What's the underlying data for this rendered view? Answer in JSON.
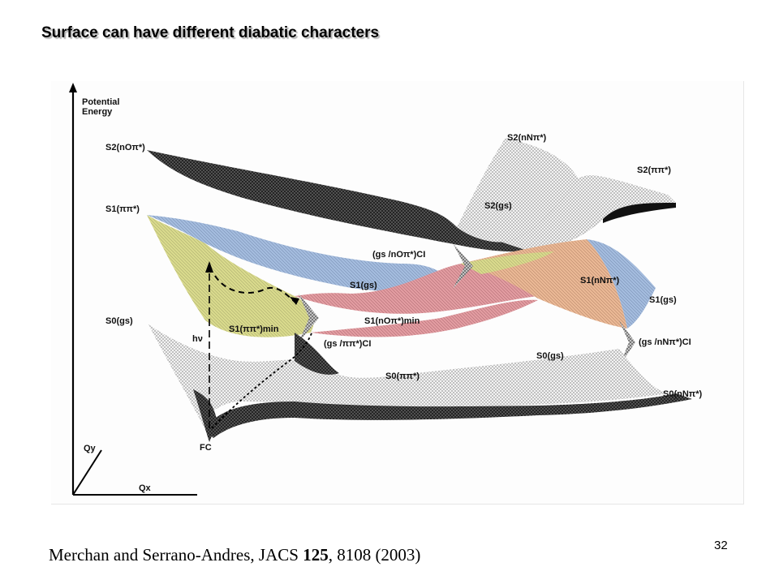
{
  "slide": {
    "title": "Surface can have different diabatic characters",
    "page_number": "32"
  },
  "citation": {
    "authors": "Merchan and Serrano-Andres, JACS ",
    "volume": "125",
    "rest": ", 8108 (2003)"
  },
  "figure": {
    "axis_y_title_line1": "Potential",
    "axis_y_title_line2": "Energy",
    "axis_qy": "Qy",
    "axis_qx": "Qx",
    "labels": {
      "s2_no_pi": "S2(nOπ*)",
      "s2_nn_pi": "S2(nNπ*)",
      "s2_pipi": "S2(ππ*)",
      "s2_gs": "S2(gs)",
      "s1_pipi": "S1(ππ*)",
      "ci_gs_no": "(gs /nOπ*)CI",
      "s1_gs_mid": "S1(gs)",
      "s1_nn_pi": "S1(nNπ*)",
      "s1_gs_right": "S1(gs)",
      "s0_gs_left": "S0(gs)",
      "hv": "hν",
      "s1_pipi_min": "S1(ππ*)min",
      "s1_no_pi_min": "S1(nOπ*)min",
      "ci_gs_pipi": "(gs /ππ*)CI",
      "ci_gs_nn": "(gs /nNπ*)CI",
      "s0_gs_right": "S0(gs)",
      "s0_pipi": "S0(ππ*)",
      "s0_nn_pi": "S0(nNπ*)",
      "fc": "FC"
    },
    "colors": {
      "yellow_region": "#d9d98a",
      "blue_region": "#9fb8dc",
      "red_region": "#e09a9e",
      "orange_region": "#e7b391",
      "mesh_dark": "#1a1a1a",
      "mesh_light": "#9a9a9a"
    }
  }
}
